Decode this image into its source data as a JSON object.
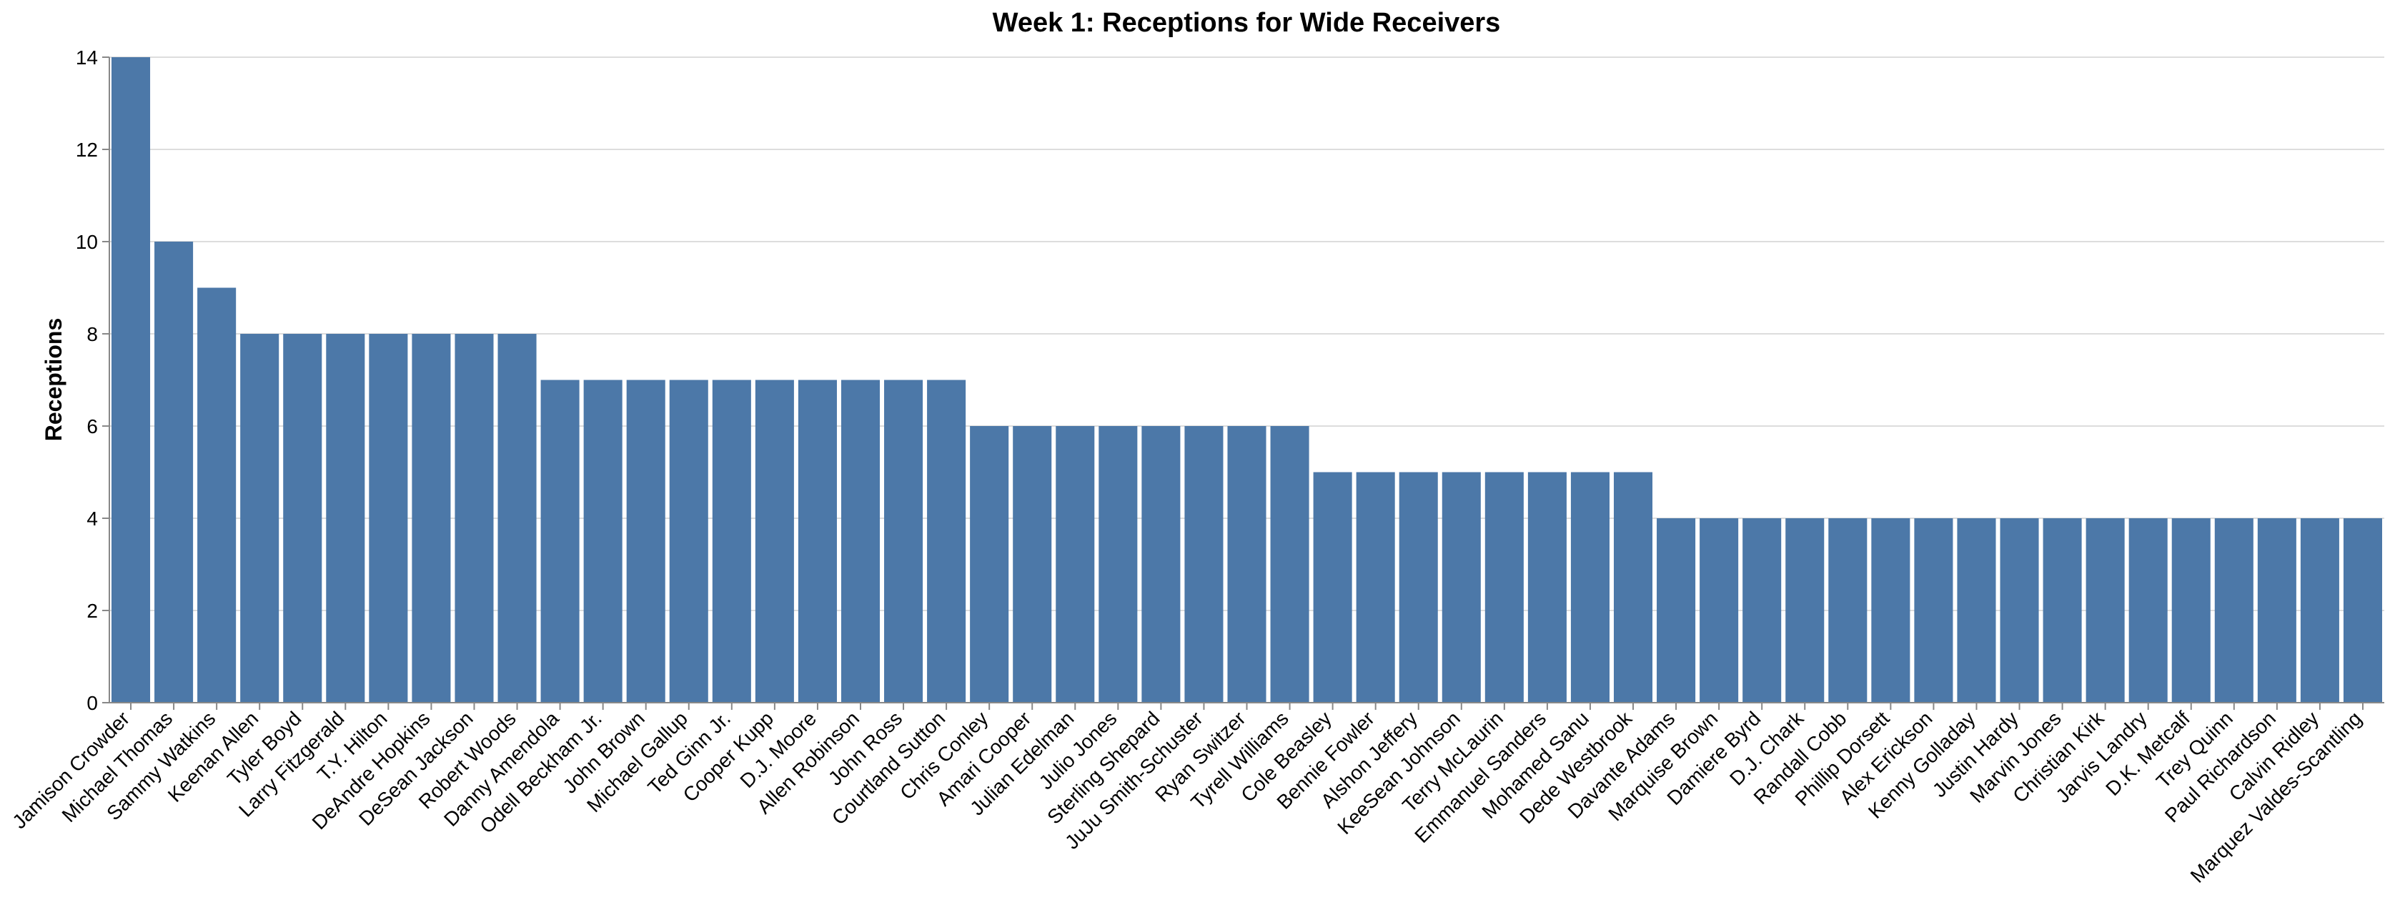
{
  "chart_data": {
    "type": "bar",
    "title": "Week 1: Receptions for Wide Receivers",
    "xlabel": "",
    "ylabel": "Receptions",
    "ylim": [
      0,
      14
    ],
    "yticks": [
      0,
      2,
      4,
      6,
      8,
      10,
      12,
      14
    ],
    "grid": true,
    "bar_color": "#4c78a8",
    "categories": [
      "Jamison Crowder",
      "Michael Thomas",
      "Sammy Watkins",
      "Keenan Allen",
      "Tyler Boyd",
      "Larry Fitzgerald",
      "T.Y. Hilton",
      "DeAndre Hopkins",
      "DeSean Jackson",
      "Robert Woods",
      "Danny Amendola",
      "Odell Beckham Jr.",
      "John Brown",
      "Michael Gallup",
      "Ted Ginn Jr.",
      "Cooper Kupp",
      "D.J. Moore",
      "Allen Robinson",
      "John Ross",
      "Courtland Sutton",
      "Chris Conley",
      "Amari Cooper",
      "Julian Edelman",
      "Julio Jones",
      "Sterling Shepard",
      "JuJu Smith-Schuster",
      "Ryan Switzer",
      "Tyrell Williams",
      "Cole Beasley",
      "Bennie Fowler",
      "Alshon Jeffery",
      "KeeSean Johnson",
      "Terry McLaurin",
      "Emmanuel Sanders",
      "Mohamed Sanu",
      "Dede Westbrook",
      "Davante Adams",
      "Marquise Brown",
      "Damiere Byrd",
      "D.J. Chark",
      "Randall Cobb",
      "Phillip Dorsett",
      "Alex Erickson",
      "Kenny Golladay",
      "Justin Hardy",
      "Marvin Jones",
      "Christian Kirk",
      "Jarvis Landry",
      "D.K. Metcalf",
      "Trey Quinn",
      "Paul Richardson",
      "Calvin Ridley",
      "Marquez Valdes-Scantling"
    ],
    "values": [
      14,
      10,
      9,
      8,
      8,
      8,
      8,
      8,
      8,
      8,
      7,
      7,
      7,
      7,
      7,
      7,
      7,
      7,
      7,
      7,
      6,
      6,
      6,
      6,
      6,
      6,
      6,
      6,
      5,
      5,
      5,
      5,
      5,
      5,
      5,
      5,
      4,
      4,
      4,
      4,
      4,
      4,
      4,
      4,
      4,
      4,
      4,
      4,
      4,
      4,
      4,
      4,
      4
    ]
  }
}
